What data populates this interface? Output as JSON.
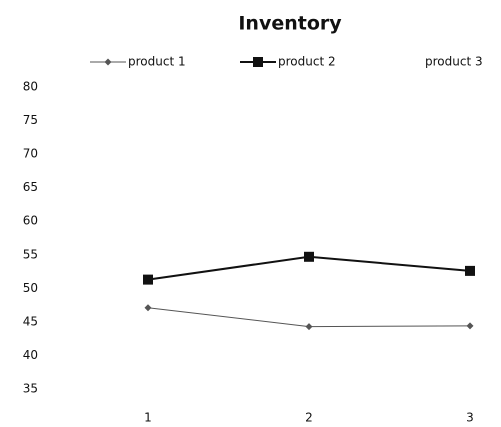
{
  "chart_data": {
    "type": "line",
    "title": "Inventory",
    "categories": [
      "1",
      "2",
      "3"
    ],
    "series": [
      {
        "name": "product 1",
        "color": "#555555",
        "values": [
          47.1,
          44.3,
          44.4
        ]
      },
      {
        "name": "product 2",
        "color": "#111111",
        "values": [
          51.3,
          54.7,
          52.6
        ]
      },
      {
        "name": "product 3",
        "color": "#ffffff",
        "values": [
          null,
          null,
          null
        ]
      }
    ],
    "ylim": [
      35,
      80
    ],
    "yticks": [
      35,
      40,
      45,
      50,
      55,
      60,
      65,
      70,
      75,
      80
    ],
    "grid": false,
    "legend": "top"
  }
}
